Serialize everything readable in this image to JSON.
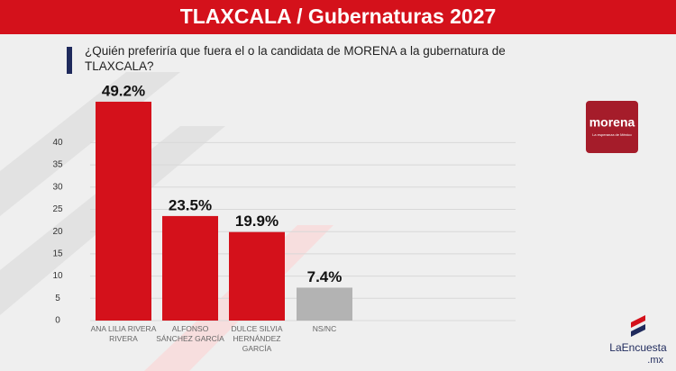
{
  "chart_data": {
    "type": "bar",
    "title": "TLAXCALA / Gubernaturas 2027",
    "subtitle": "¿Quién preferiría que fuera el o la candidata de MORENA a la gubernatura de TLAXCALA?",
    "categories": [
      "ANA LILIA RIVERA RIVERA",
      "ALFONSO SÁNCHEZ GARCÍA",
      "DULCE SILVIA HERNÁNDEZ GARCÍA",
      "NS/NC"
    ],
    "values": [
      49.2,
      23.5,
      19.9,
      7.4
    ],
    "value_labels": [
      "49.2%",
      "23.5%",
      "19.9%",
      "7.4%"
    ],
    "colors": [
      "#d4111b",
      "#d4111b",
      "#d4111b",
      "#b3b3b3"
    ],
    "ylim": [
      0,
      50
    ],
    "yticks": [
      0,
      5,
      10,
      15,
      20,
      25,
      30,
      35,
      40
    ],
    "grid": true
  },
  "branding": {
    "party": "morena",
    "party_tagline": "La esperanza de México",
    "source": "LaEncuesta",
    "source_domain": ".mx"
  }
}
